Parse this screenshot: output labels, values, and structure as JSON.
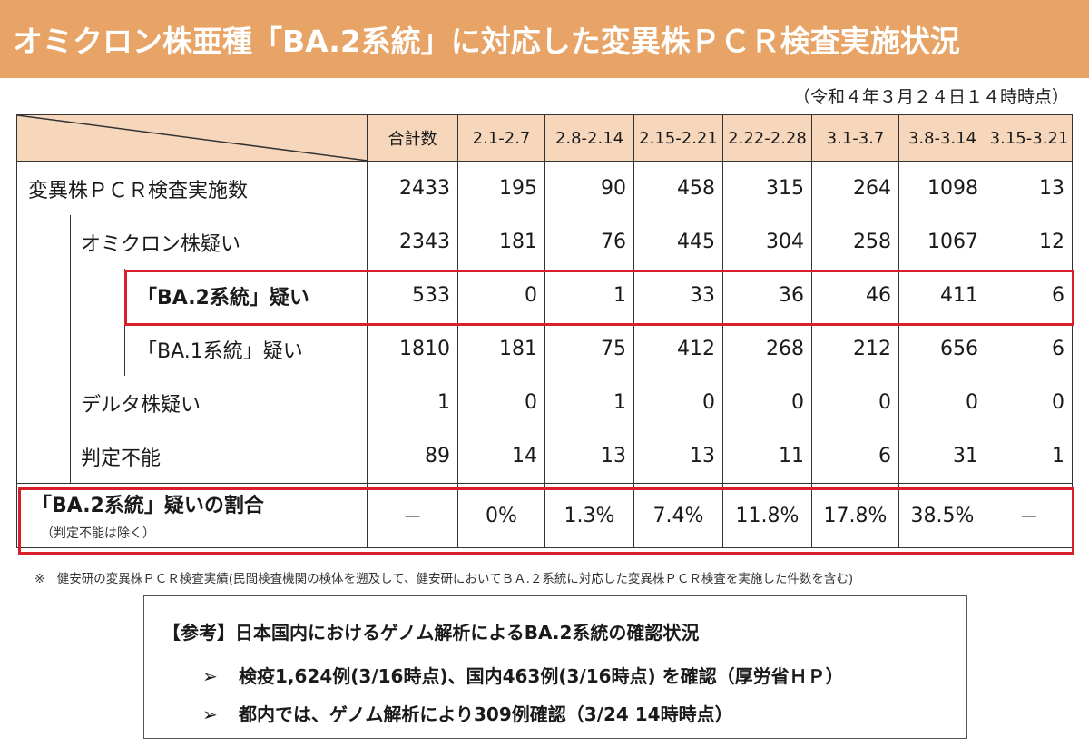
{
  "title": "オミクロン株亜種「BA.2系統」に対応した変異株ＰＣＲ検査実施状況",
  "as_of": "（令和４年３月２４日１４時時点）",
  "colors": {
    "title_bar": "#e8a466",
    "header_bg": "#f6d7bc",
    "highlight_border": "#d8202c"
  },
  "table": {
    "headers": [
      "合計数",
      "2.1-2.7",
      "2.8-2.14",
      "2.15-2.21",
      "2.22-2.28",
      "3.1-3.7",
      "3.8-3.14",
      "3.15-3.21"
    ],
    "rows": [
      {
        "label": "変異株ＰＣＲ検査実施数",
        "values": [
          "2433",
          "195",
          "90",
          "458",
          "315",
          "264",
          "1098",
          "13"
        ]
      },
      {
        "label": "オミクロン株疑い",
        "values": [
          "2343",
          "181",
          "76",
          "445",
          "304",
          "258",
          "1067",
          "12"
        ]
      },
      {
        "label": "「BA.2系統」疑い",
        "values": [
          "533",
          "0",
          "1",
          "33",
          "36",
          "46",
          "411",
          "6"
        ]
      },
      {
        "label": "「BA.1系統」疑い",
        "values": [
          "1810",
          "181",
          "75",
          "412",
          "268",
          "212",
          "656",
          "6"
        ]
      },
      {
        "label": "デルタ株疑い",
        "values": [
          "1",
          "0",
          "1",
          "0",
          "0",
          "0",
          "0",
          "0"
        ]
      },
      {
        "label": "判定不能",
        "values": [
          "89",
          "14",
          "13",
          "13",
          "11",
          "6",
          "31",
          "1"
        ]
      }
    ],
    "ratio": {
      "label": "「BA.2系統」疑いの割合",
      "sublabel": "（判定不能は除く）",
      "values": [
        "－",
        "0%",
        "1.3%",
        "7.4%",
        "11.8%",
        "17.8%",
        "38.5%",
        "－"
      ]
    }
  },
  "note": "※　健安研の変異株ＰＣＲ検査実績(民間検査機関の検体を遡及して、健安研においてＢＡ.２系統に対応した変異株ＰＣＲ検査を実施した件数を含む)",
  "reference": {
    "title": "【参考】日本国内におけるゲノム解析によるBA.2系統の確認状況",
    "items": [
      "検疫1,624例(3/16時点)、国内463例(3/16時点) を確認（厚労省ＨＰ）",
      "都内では、ゲノム解析により309例確認（3/24 14時時点）"
    ]
  }
}
